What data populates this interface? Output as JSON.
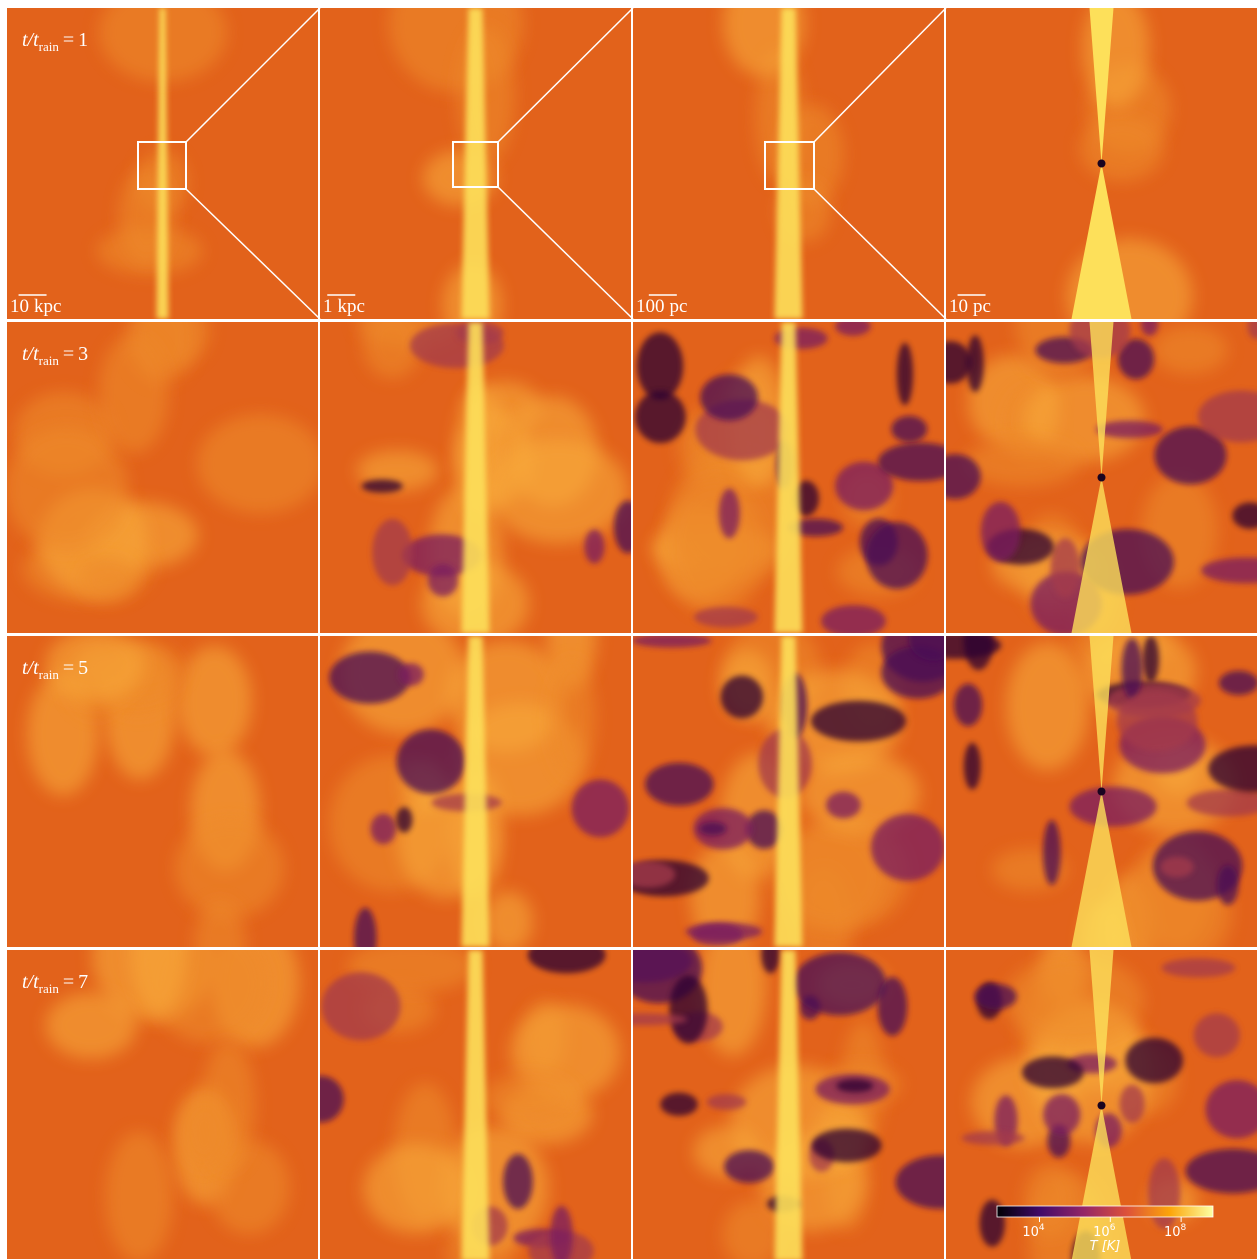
{
  "time_label": {
    "symbol": "t/t",
    "subscript": "rain",
    "relation": "="
  },
  "rows": [
    {
      "value": 1
    },
    {
      "value": 3
    },
    {
      "value": 5
    },
    {
      "value": 7
    }
  ],
  "scale_bars": [
    {
      "length": 10,
      "unit": "kpc"
    },
    {
      "length": 1,
      "unit": "kpc"
    },
    {
      "length": 100,
      "unit": "pc"
    },
    {
      "length": 10,
      "unit": "pc"
    }
  ],
  "colorbar": {
    "label": "T [K]",
    "tick_base": 10,
    "ticks": [
      4,
      6,
      8
    ],
    "lim": [
      2.8,
      8.9
    ]
  }
}
